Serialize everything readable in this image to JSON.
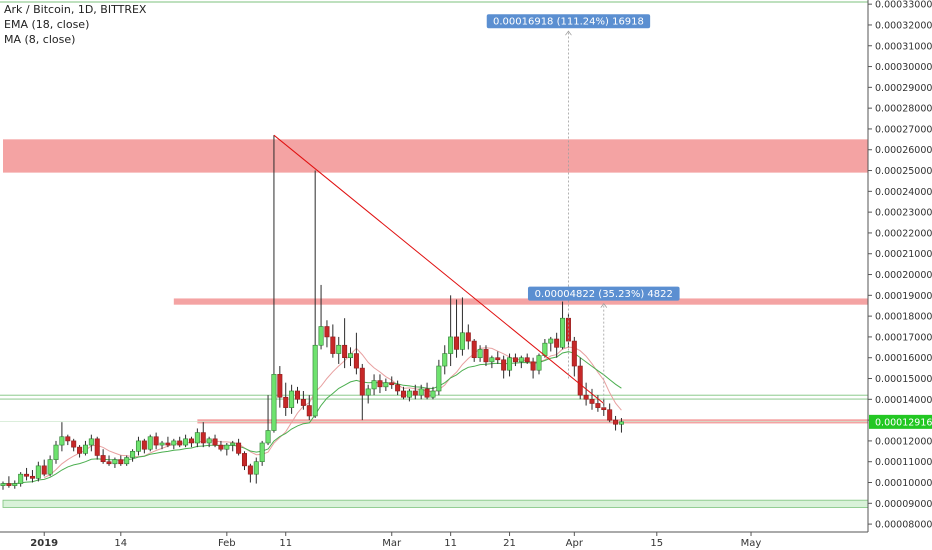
{
  "legend": {
    "title": "Ark / Bitcoin, 1D, BITTREX",
    "ema": "EMA (18, close)",
    "ma": "MA (8, close)"
  },
  "colors": {
    "up": "#26a69a",
    "upFill": "#6ee26e",
    "down": "#c62828",
    "wick": "#2b2b2b",
    "resistance": "#f4a3a3",
    "support": "#d9f2d9",
    "supportBorder": "#7cc27c",
    "trendline": "#e01010",
    "ema": "#4caf50",
    "ma": "#e8a0a0",
    "priceTag": "#22c722",
    "measureLabel": "#5b8fd1"
  },
  "chart_data": {
    "type": "candlestick",
    "title": "Ark / Bitcoin, 1D, BITTREX",
    "y_ticks": [
      "0.00008000",
      "0.00009000",
      "0.00010000",
      "0.00011000",
      "0.00012000",
      "0.00013000",
      "0.00014000",
      "0.00015000",
      "0.00016000",
      "0.00017000",
      "0.00018000",
      "0.00019000",
      "0.00020000",
      "0.00021000",
      "0.00022000",
      "0.00023000",
      "0.00024000",
      "0.00025000",
      "0.00026000",
      "0.00027000",
      "0.00028000",
      "0.00029000",
      "0.00030000",
      "0.00031000",
      "0.00032000",
      "0.00033000"
    ],
    "ylim": [
      7.62e-05,
      0.000332
    ],
    "x_ticks": [
      {
        "label": "2019",
        "date": "2019-01-01",
        "bold": true
      },
      {
        "label": "14",
        "date": "2019-01-14"
      },
      {
        "label": "Feb",
        "date": "2019-02-01"
      },
      {
        "label": "11",
        "date": "2019-02-11"
      },
      {
        "label": "Mar",
        "date": "2019-03-01"
      },
      {
        "label": "11",
        "date": "2019-03-11"
      },
      {
        "label": "21",
        "date": "2019-03-21"
      },
      {
        "label": "Apr",
        "date": "2019-04-01"
      },
      {
        "label": "15",
        "date": "2019-04-15"
      },
      {
        "label": "May",
        "date": "2019-05-01"
      }
    ],
    "x_start": "2018-12-25",
    "current_price": "0.00012916",
    "candles": [
      {
        "date": "2018-12-25",
        "o": 9.85e-05,
        "h": 0.0001005,
        "l": 9.65e-05,
        "c": 9.95e-05
      },
      {
        "date": "2018-12-26",
        "o": 9.95e-05,
        "h": 0.000103,
        "l": 9.75e-05,
        "c": 9.85e-05
      },
      {
        "date": "2018-12-27",
        "o": 9.85e-05,
        "h": 0.000101,
        "l": 9.7e-05,
        "c": 9.95e-05
      },
      {
        "date": "2018-12-28",
        "o": 9.95e-05,
        "h": 0.000105,
        "l": 9.8e-05,
        "c": 0.000104
      },
      {
        "date": "2018-12-29",
        "o": 0.000104,
        "h": 0.000107,
        "l": 0.000101,
        "c": 0.000103
      },
      {
        "date": "2018-12-30",
        "o": 0.000103,
        "h": 0.000106,
        "l": 0.0001,
        "c": 0.000102
      },
      {
        "date": "2018-12-31",
        "o": 0.000102,
        "h": 0.00011,
        "l": 0.0001005,
        "c": 0.000108
      },
      {
        "date": "2019-01-01",
        "o": 0.000108,
        "h": 0.000111,
        "l": 0.000103,
        "c": 0.000104
      },
      {
        "date": "2019-01-02",
        "o": 0.000104,
        "h": 0.000113,
        "l": 0.000103,
        "c": 0.000111
      },
      {
        "date": "2019-01-03",
        "o": 0.000111,
        "h": 0.00012,
        "l": 0.000109,
        "c": 0.000118
      },
      {
        "date": "2019-01-04",
        "o": 0.000118,
        "h": 0.000129,
        "l": 0.000115,
        "c": 0.000122
      },
      {
        "date": "2019-01-05",
        "o": 0.000122,
        "h": 0.000123,
        "l": 0.000118,
        "c": 0.00012
      },
      {
        "date": "2019-01-06",
        "o": 0.00012,
        "h": 0.000121,
        "l": 0.000115,
        "c": 0.000117
      },
      {
        "date": "2019-01-07",
        "o": 0.000117,
        "h": 0.000118,
        "l": 0.000112,
        "c": 0.000114
      },
      {
        "date": "2019-01-08",
        "o": 0.000114,
        "h": 0.00012,
        "l": 0.000113,
        "c": 0.000118
      },
      {
        "date": "2019-01-09",
        "o": 0.000118,
        "h": 0.000123,
        "l": 0.000115,
        "c": 0.000121
      },
      {
        "date": "2019-01-10",
        "o": 0.000121,
        "h": 0.000122,
        "l": 0.000111,
        "c": 0.000113
      },
      {
        "date": "2019-01-11",
        "o": 0.000113,
        "h": 0.000116,
        "l": 0.000109,
        "c": 0.00011
      },
      {
        "date": "2019-01-12",
        "o": 0.00011,
        "h": 0.000113,
        "l": 0.000108,
        "c": 0.000109
      },
      {
        "date": "2019-01-13",
        "o": 0.000109,
        "h": 0.000112,
        "l": 0.000107,
        "c": 0.000111
      },
      {
        "date": "2019-01-14",
        "o": 0.000111,
        "h": 0.000113,
        "l": 0.000108,
        "c": 0.000109
      },
      {
        "date": "2019-01-15",
        "o": 0.000109,
        "h": 0.000113,
        "l": 0.000108,
        "c": 0.000112
      },
      {
        "date": "2019-01-16",
        "o": 0.000112,
        "h": 0.000116,
        "l": 0.00011,
        "c": 0.000115
      },
      {
        "date": "2019-01-17",
        "o": 0.000115,
        "h": 0.000122,
        "l": 0.000113,
        "c": 0.00012
      },
      {
        "date": "2019-01-18",
        "o": 0.00012,
        "h": 0.000121,
        "l": 0.000114,
        "c": 0.000116
      },
      {
        "date": "2019-01-19",
        "o": 0.000116,
        "h": 0.000123,
        "l": 0.000115,
        "c": 0.000122
      },
      {
        "date": "2019-01-20",
        "o": 0.000122,
        "h": 0.000124,
        "l": 0.000116,
        "c": 0.000118
      },
      {
        "date": "2019-01-21",
        "o": 0.000118,
        "h": 0.00012,
        "l": 0.000116,
        "c": 0.000119
      },
      {
        "date": "2019-01-22",
        "o": 0.000119,
        "h": 0.000122,
        "l": 0.000117,
        "c": 0.000118
      },
      {
        "date": "2019-01-23",
        "o": 0.000118,
        "h": 0.000121,
        "l": 0.000116,
        "c": 0.00012
      },
      {
        "date": "2019-01-24",
        "o": 0.00012,
        "h": 0.000122,
        "l": 0.000117,
        "c": 0.000118
      },
      {
        "date": "2019-01-25",
        "o": 0.000118,
        "h": 0.000123,
        "l": 0.000117,
        "c": 0.000121
      },
      {
        "date": "2019-01-26",
        "o": 0.000121,
        "h": 0.000122,
        "l": 0.000117,
        "c": 0.000119
      },
      {
        "date": "2019-01-27",
        "o": 0.000119,
        "h": 0.000126,
        "l": 0.000117,
        "c": 0.000124
      },
      {
        "date": "2019-01-28",
        "o": 0.000124,
        "h": 0.000129,
        "l": 0.000117,
        "c": 0.000119
      },
      {
        "date": "2019-01-29",
        "o": 0.000119,
        "h": 0.000122,
        "l": 0.000117,
        "c": 0.000121
      },
      {
        "date": "2019-01-30",
        "o": 0.000121,
        "h": 0.000123,
        "l": 0.000117,
        "c": 0.000118
      },
      {
        "date": "2019-01-31",
        "o": 0.000118,
        "h": 0.00012,
        "l": 0.000115,
        "c": 0.000116
      },
      {
        "date": "2019-02-01",
        "o": 0.000116,
        "h": 0.000119,
        "l": 0.000113,
        "c": 0.000118
      },
      {
        "date": "2019-02-02",
        "o": 0.000118,
        "h": 0.00012,
        "l": 0.000115,
        "c": 0.000119
      },
      {
        "date": "2019-02-03",
        "o": 0.000119,
        "h": 0.000121,
        "l": 0.000113,
        "c": 0.000114
      },
      {
        "date": "2019-02-04",
        "o": 0.000114,
        "h": 0.000115,
        "l": 0.000106,
        "c": 0.000108
      },
      {
        "date": "2019-02-05",
        "o": 0.000108,
        "h": 0.000109,
        "l": 0.0001,
        "c": 0.000104
      },
      {
        "date": "2019-02-06",
        "o": 0.000104,
        "h": 0.000112,
        "l": 9.95e-05,
        "c": 0.00011
      },
      {
        "date": "2019-02-07",
        "o": 0.00011,
        "h": 0.00012,
        "l": 0.000108,
        "c": 0.000119
      },
      {
        "date": "2019-02-08",
        "o": 0.000119,
        "h": 0.000142,
        "l": 0.000118,
        "c": 0.000125
      },
      {
        "date": "2019-02-09",
        "o": 0.000125,
        "h": 0.000267,
        "l": 0.000124,
        "c": 0.000152
      },
      {
        "date": "2019-02-10",
        "o": 0.000152,
        "h": 0.000156,
        "l": 0.000136,
        "c": 0.000141
      },
      {
        "date": "2019-02-11",
        "o": 0.000141,
        "h": 0.000148,
        "l": 0.000132,
        "c": 0.000136
      },
      {
        "date": "2019-02-12",
        "o": 0.000136,
        "h": 0.000147,
        "l": 0.000133,
        "c": 0.000144
      },
      {
        "date": "2019-02-13",
        "o": 0.000144,
        "h": 0.000146,
        "l": 0.000138,
        "c": 0.00014
      },
      {
        "date": "2019-02-14",
        "o": 0.00014,
        "h": 0.000144,
        "l": 0.000135,
        "c": 0.000137
      },
      {
        "date": "2019-02-15",
        "o": 0.000137,
        "h": 0.000142,
        "l": 0.00013,
        "c": 0.000132
      },
      {
        "date": "2019-02-16",
        "o": 0.000132,
        "h": 0.00025,
        "l": 0.000131,
        "c": 0.000166
      },
      {
        "date": "2019-02-17",
        "o": 0.000166,
        "h": 0.000195,
        "l": 0.000164,
        "c": 0.000175
      },
      {
        "date": "2019-02-18",
        "o": 0.000175,
        "h": 0.000178,
        "l": 0.000165,
        "c": 0.00017
      },
      {
        "date": "2019-02-19",
        "o": 0.00017,
        "h": 0.000176,
        "l": 0.00016,
        "c": 0.000162
      },
      {
        "date": "2019-02-20",
        "o": 0.000162,
        "h": 0.00017,
        "l": 0.000157,
        "c": 0.000166
      },
      {
        "date": "2019-02-21",
        "o": 0.000166,
        "h": 0.000179,
        "l": 0.000155,
        "c": 0.00016
      },
      {
        "date": "2019-02-22",
        "o": 0.00016,
        "h": 0.000165,
        "l": 0.000156,
        "c": 0.000162
      },
      {
        "date": "2019-02-23",
        "o": 0.000162,
        "h": 0.000172,
        "l": 0.000152,
        "c": 0.000155
      },
      {
        "date": "2019-02-24",
        "o": 0.000155,
        "h": 0.000157,
        "l": 0.00013,
        "c": 0.000142
      },
      {
        "date": "2019-02-25",
        "o": 0.000142,
        "h": 0.000147,
        "l": 0.000138,
        "c": 0.000145
      },
      {
        "date": "2019-02-26",
        "o": 0.000145,
        "h": 0.000152,
        "l": 0.000142,
        "c": 0.000149
      },
      {
        "date": "2019-02-27",
        "o": 0.000149,
        "h": 0.000152,
        "l": 0.000143,
        "c": 0.000146
      },
      {
        "date": "2019-02-28",
        "o": 0.000146,
        "h": 0.00015,
        "l": 0.000144,
        "c": 0.000148
      },
      {
        "date": "2019-03-01",
        "o": 0.000148,
        "h": 0.000151,
        "l": 0.000145,
        "c": 0.000147
      },
      {
        "date": "2019-03-02",
        "o": 0.000147,
        "h": 0.000149,
        "l": 0.000142,
        "c": 0.000144
      },
      {
        "date": "2019-03-03",
        "o": 0.000144,
        "h": 0.000146,
        "l": 0.00014,
        "c": 0.000141
      },
      {
        "date": "2019-03-04",
        "o": 0.000141,
        "h": 0.000145,
        "l": 0.000139,
        "c": 0.000144
      },
      {
        "date": "2019-03-05",
        "o": 0.000144,
        "h": 0.000147,
        "l": 0.00014,
        "c": 0.000142
      },
      {
        "date": "2019-03-06",
        "o": 0.000142,
        "h": 0.000147,
        "l": 0.00014,
        "c": 0.000145
      },
      {
        "date": "2019-03-07",
        "o": 0.000145,
        "h": 0.000148,
        "l": 0.00014,
        "c": 0.000141
      },
      {
        "date": "2019-03-08",
        "o": 0.000141,
        "h": 0.000146,
        "l": 0.00014,
        "c": 0.000144
      },
      {
        "date": "2019-03-09",
        "o": 0.000144,
        "h": 0.000159,
        "l": 0.000142,
        "c": 0.000156
      },
      {
        "date": "2019-03-10",
        "o": 0.000156,
        "h": 0.000166,
        "l": 0.000152,
        "c": 0.000162
      },
      {
        "date": "2019-03-11",
        "o": 0.000162,
        "h": 0.00019,
        "l": 0.000156,
        "c": 0.00017
      },
      {
        "date": "2019-03-12",
        "o": 0.00017,
        "h": 0.000188,
        "l": 0.00016,
        "c": 0.000164
      },
      {
        "date": "2019-03-13",
        "o": 0.000164,
        "h": 0.000189,
        "l": 0.000161,
        "c": 0.000172
      },
      {
        "date": "2019-03-14",
        "o": 0.000172,
        "h": 0.000176,
        "l": 0.000164,
        "c": 0.000168
      },
      {
        "date": "2019-03-15",
        "o": 0.000168,
        "h": 0.000169,
        "l": 0.000158,
        "c": 0.00016
      },
      {
        "date": "2019-03-16",
        "o": 0.00016,
        "h": 0.000166,
        "l": 0.000158,
        "c": 0.000164
      },
      {
        "date": "2019-03-17",
        "o": 0.000164,
        "h": 0.000166,
        "l": 0.000156,
        "c": 0.000158
      },
      {
        "date": "2019-03-18",
        "o": 0.000158,
        "h": 0.000161,
        "l": 0.000155,
        "c": 0.00016
      },
      {
        "date": "2019-03-19",
        "o": 0.00016,
        "h": 0.000163,
        "l": 0.000157,
        "c": 0.000159
      },
      {
        "date": "2019-03-20",
        "o": 0.000159,
        "h": 0.000161,
        "l": 0.00015,
        "c": 0.000154
      },
      {
        "date": "2019-03-21",
        "o": 0.000154,
        "h": 0.000162,
        "l": 0.000151,
        "c": 0.00016
      },
      {
        "date": "2019-03-22",
        "o": 0.00016,
        "h": 0.000162,
        "l": 0.000156,
        "c": 0.000158
      },
      {
        "date": "2019-03-23",
        "o": 0.000158,
        "h": 0.000161,
        "l": 0.000155,
        "c": 0.00016
      },
      {
        "date": "2019-03-24",
        "o": 0.00016,
        "h": 0.000162,
        "l": 0.000157,
        "c": 0.000158
      },
      {
        "date": "2019-03-25",
        "o": 0.000158,
        "h": 0.00016,
        "l": 0.00015,
        "c": 0.000154
      },
      {
        "date": "2019-03-26",
        "o": 0.000154,
        "h": 0.000162,
        "l": 0.000152,
        "c": 0.000161
      },
      {
        "date": "2019-03-27",
        "o": 0.000161,
        "h": 0.000169,
        "l": 0.00016,
        "c": 0.000167
      },
      {
        "date": "2019-03-28",
        "o": 0.000167,
        "h": 0.00017,
        "l": 0.000163,
        "c": 0.000169
      },
      {
        "date": "2019-03-29",
        "o": 0.000169,
        "h": 0.000172,
        "l": 0.00016,
        "c": 0.000165
      },
      {
        "date": "2019-03-30",
        "o": 0.000165,
        "h": 0.000187,
        "l": 0.000164,
        "c": 0.000179
      },
      {
        "date": "2019-03-31",
        "o": 0.000179,
        "h": 0.000181,
        "l": 0.000165,
        "c": 0.000168
      },
      {
        "date": "2019-04-01",
        "o": 0.000168,
        "h": 0.00017,
        "l": 0.000151,
        "c": 0.000156
      },
      {
        "date": "2019-04-02",
        "o": 0.000156,
        "h": 0.00016,
        "l": 0.00014,
        "c": 0.000142
      },
      {
        "date": "2019-04-03",
        "o": 0.000142,
        "h": 0.000148,
        "l": 0.000137,
        "c": 0.00014
      },
      {
        "date": "2019-04-04",
        "o": 0.00014,
        "h": 0.000145,
        "l": 0.000135,
        "c": 0.000138
      },
      {
        "date": "2019-04-05",
        "o": 0.000138,
        "h": 0.000142,
        "l": 0.000134,
        "c": 0.000136
      },
      {
        "date": "2019-04-06",
        "o": 0.000136,
        "h": 0.00014,
        "l": 0.000132,
        "c": 0.000135
      },
      {
        "date": "2019-04-07",
        "o": 0.000135,
        "h": 0.000138,
        "l": 0.000129,
        "c": 0.00013
      },
      {
        "date": "2019-04-08",
        "o": 0.00013,
        "h": 0.000132,
        "l": 0.000125,
        "c": 0.000128
      },
      {
        "date": "2019-04-09",
        "o": 0.000128,
        "h": 0.000131,
        "l": 0.000124,
        "c": 0.0001292
      }
    ],
    "zones": [
      {
        "kind": "resistance",
        "from": 0.000249,
        "to": 0.000265,
        "start": "2018-12-25",
        "end": "2019-05-20"
      },
      {
        "kind": "resistance",
        "from": 0.0001855,
        "to": 0.0001885,
        "start": "2019-01-23",
        "end": "2019-05-20"
      },
      {
        "kind": "resistance",
        "from": 0.0001284,
        "to": 0.0001304,
        "start": "2019-01-27",
        "end": "2019-05-20"
      },
      {
        "kind": "support",
        "from": 8.8e-05,
        "to": 9.15e-05,
        "start": "2018-12-25",
        "end": "2019-05-20"
      }
    ],
    "hlines": [
      0.0001401,
      0.000142
    ],
    "trendline": {
      "from": {
        "date": "2019-02-09",
        "price": 0.000267
      },
      "to": {
        "date": "2019-04-06",
        "price": 0.000138
      }
    },
    "measures": [
      {
        "label": "0.00016918 (111.24%) 16918",
        "date": "2019-03-31",
        "from": 0.00015,
        "to": 0.000317
      },
      {
        "label": "0.00004822 (35.23%) 4822",
        "date": "2019-04-06",
        "from": 0.000136,
        "to": 0.000186
      }
    ]
  }
}
